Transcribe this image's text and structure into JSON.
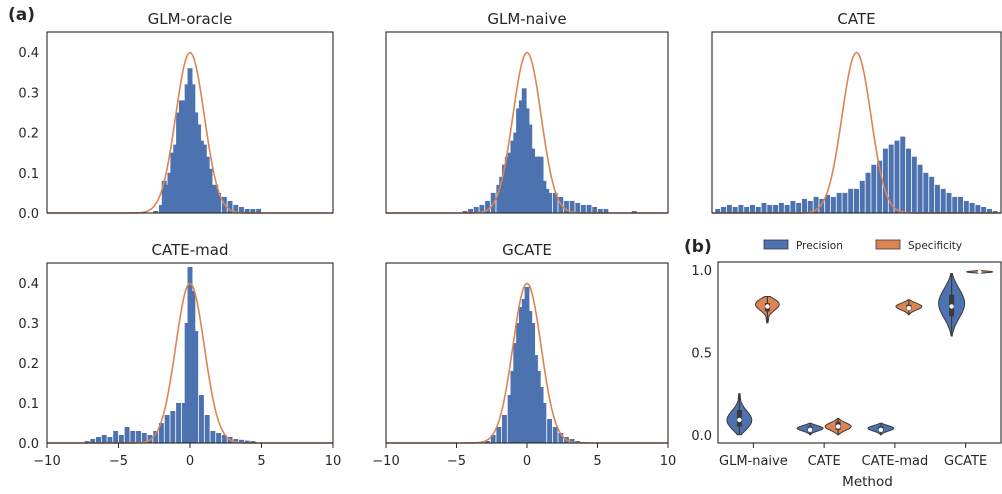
{
  "panel_labels": [
    "(a)",
    "(b)"
  ],
  "colors": {
    "bars": "#4c72b0",
    "curve": "#dd8452",
    "precision": "#4c72b0",
    "specificity": "#dd8452"
  },
  "chart_data": [
    {
      "type": "bar",
      "title": "GLM-oracle",
      "xlim": [
        -10,
        10
      ],
      "ylim": [
        0,
        0.45
      ],
      "bin_width": 0.4,
      "yticks": [
        0.0,
        0.1,
        0.2,
        0.3,
        0.4
      ],
      "bins": [
        {
          "x": -2.4,
          "y": 0.005
        },
        {
          "x": -2.0,
          "y": 0.02
        },
        {
          "x": -1.8,
          "y": 0.08
        },
        {
          "x": -1.6,
          "y": 0.07
        },
        {
          "x": -1.4,
          "y": 0.1
        },
        {
          "x": -1.2,
          "y": 0.15
        },
        {
          "x": -1.0,
          "y": 0.17
        },
        {
          "x": -0.8,
          "y": 0.25
        },
        {
          "x": -0.6,
          "y": 0.28
        },
        {
          "x": -0.4,
          "y": 0.28
        },
        {
          "x": -0.2,
          "y": 0.32
        },
        {
          "x": 0.0,
          "y": 0.36
        },
        {
          "x": 0.2,
          "y": 0.32
        },
        {
          "x": 0.4,
          "y": 0.25
        },
        {
          "x": 0.6,
          "y": 0.22
        },
        {
          "x": 0.8,
          "y": 0.18
        },
        {
          "x": 1.0,
          "y": 0.17
        },
        {
          "x": 1.2,
          "y": 0.14
        },
        {
          "x": 1.4,
          "y": 0.11
        },
        {
          "x": 1.6,
          "y": 0.07
        },
        {
          "x": 1.8,
          "y": 0.07
        },
        {
          "x": 2.0,
          "y": 0.05
        },
        {
          "x": 2.4,
          "y": 0.04
        },
        {
          "x": 2.8,
          "y": 0.03
        },
        {
          "x": 3.2,
          "y": 0.02
        },
        {
          "x": 3.6,
          "y": 0.015
        },
        {
          "x": 4.0,
          "y": 0.01
        },
        {
          "x": 4.4,
          "y": 0.01
        },
        {
          "x": 4.8,
          "y": 0.01
        }
      ],
      "curve": {
        "type": "normal",
        "mean": 0,
        "sd": 1
      }
    },
    {
      "type": "bar",
      "title": "GLM-naive",
      "xlim": [
        -10,
        10
      ],
      "ylim": [
        0,
        0.45
      ],
      "bin_width": 0.4,
      "bins": [
        {
          "x": -4.4,
          "y": 0.005
        },
        {
          "x": -4.0,
          "y": 0.01
        },
        {
          "x": -3.6,
          "y": 0.015
        },
        {
          "x": -3.2,
          "y": 0.02
        },
        {
          "x": -2.8,
          "y": 0.03
        },
        {
          "x": -2.4,
          "y": 0.05
        },
        {
          "x": -2.0,
          "y": 0.07
        },
        {
          "x": -1.8,
          "y": 0.09
        },
        {
          "x": -1.6,
          "y": 0.12
        },
        {
          "x": -1.4,
          "y": 0.14
        },
        {
          "x": -1.2,
          "y": 0.15
        },
        {
          "x": -1.0,
          "y": 0.18
        },
        {
          "x": -0.8,
          "y": 0.2
        },
        {
          "x": -0.6,
          "y": 0.26
        },
        {
          "x": -0.4,
          "y": 0.28
        },
        {
          "x": -0.2,
          "y": 0.31
        },
        {
          "x": 0.0,
          "y": 0.26
        },
        {
          "x": 0.2,
          "y": 0.22
        },
        {
          "x": 0.4,
          "y": 0.16
        },
        {
          "x": 0.6,
          "y": 0.14
        },
        {
          "x": 0.8,
          "y": 0.14
        },
        {
          "x": 1.0,
          "y": 0.14
        },
        {
          "x": 1.2,
          "y": 0.08
        },
        {
          "x": 1.4,
          "y": 0.06
        },
        {
          "x": 1.6,
          "y": 0.05
        },
        {
          "x": 2.0,
          "y": 0.05
        },
        {
          "x": 2.4,
          "y": 0.04
        },
        {
          "x": 2.8,
          "y": 0.03
        },
        {
          "x": 3.2,
          "y": 0.03
        },
        {
          "x": 3.6,
          "y": 0.025
        },
        {
          "x": 4.0,
          "y": 0.02
        },
        {
          "x": 4.4,
          "y": 0.02
        },
        {
          "x": 4.8,
          "y": 0.015
        },
        {
          "x": 5.2,
          "y": 0.01
        },
        {
          "x": 5.6,
          "y": 0.01
        },
        {
          "x": 7.6,
          "y": 0.005
        }
      ],
      "curve": {
        "type": "normal",
        "mean": 0,
        "sd": 1
      }
    },
    {
      "type": "bar",
      "title": "CATE",
      "xlim": [
        -10,
        10
      ],
      "ylim": [
        0,
        0.45
      ],
      "bin_width": 0.4,
      "bins": [
        {
          "x": -9.6,
          "y": 0.01
        },
        {
          "x": -9.2,
          "y": 0.015
        },
        {
          "x": -8.8,
          "y": 0.02
        },
        {
          "x": -8.4,
          "y": 0.015
        },
        {
          "x": -8.0,
          "y": 0.02
        },
        {
          "x": -7.6,
          "y": 0.015
        },
        {
          "x": -7.2,
          "y": 0.02
        },
        {
          "x": -6.8,
          "y": 0.015
        },
        {
          "x": -6.4,
          "y": 0.025
        },
        {
          "x": -6.0,
          "y": 0.02
        },
        {
          "x": -5.6,
          "y": 0.02
        },
        {
          "x": -5.2,
          "y": 0.025
        },
        {
          "x": -4.8,
          "y": 0.02
        },
        {
          "x": -4.4,
          "y": 0.03
        },
        {
          "x": -4.0,
          "y": 0.025
        },
        {
          "x": -3.6,
          "y": 0.035
        },
        {
          "x": -3.2,
          "y": 0.03
        },
        {
          "x": -2.8,
          "y": 0.04
        },
        {
          "x": -2.4,
          "y": 0.035
        },
        {
          "x": -2.0,
          "y": 0.045
        },
        {
          "x": -1.6,
          "y": 0.04
        },
        {
          "x": -1.2,
          "y": 0.05
        },
        {
          "x": -0.8,
          "y": 0.05
        },
        {
          "x": -0.4,
          "y": 0.06
        },
        {
          "x": 0.0,
          "y": 0.06
        },
        {
          "x": 0.4,
          "y": 0.08
        },
        {
          "x": 0.8,
          "y": 0.1
        },
        {
          "x": 1.2,
          "y": 0.12
        },
        {
          "x": 1.6,
          "y": 0.13
        },
        {
          "x": 2.0,
          "y": 0.16
        },
        {
          "x": 2.4,
          "y": 0.17
        },
        {
          "x": 2.8,
          "y": 0.18
        },
        {
          "x": 3.2,
          "y": 0.19
        },
        {
          "x": 3.6,
          "y": 0.16
        },
        {
          "x": 4.0,
          "y": 0.14
        },
        {
          "x": 4.4,
          "y": 0.12
        },
        {
          "x": 4.8,
          "y": 0.1
        },
        {
          "x": 5.2,
          "y": 0.09
        },
        {
          "x": 5.6,
          "y": 0.07
        },
        {
          "x": 6.0,
          "y": 0.06
        },
        {
          "x": 6.4,
          "y": 0.05
        },
        {
          "x": 6.8,
          "y": 0.04
        },
        {
          "x": 7.2,
          "y": 0.04
        },
        {
          "x": 7.6,
          "y": 0.03
        },
        {
          "x": 8.0,
          "y": 0.025
        },
        {
          "x": 8.4,
          "y": 0.02
        },
        {
          "x": 8.8,
          "y": 0.015
        },
        {
          "x": 9.2,
          "y": 0.01
        },
        {
          "x": 9.6,
          "y": 0.005
        }
      ],
      "curve": {
        "type": "normal",
        "mean": 0,
        "sd": 1
      }
    },
    {
      "type": "bar",
      "title": "CATE-mad",
      "xlim": [
        -10,
        10
      ],
      "ylim": [
        0,
        0.45
      ],
      "bin_width": 0.4,
      "bins": [
        {
          "x": -7.2,
          "y": 0.005
        },
        {
          "x": -6.8,
          "y": 0.01
        },
        {
          "x": -6.4,
          "y": 0.015
        },
        {
          "x": -6.0,
          "y": 0.02
        },
        {
          "x": -5.6,
          "y": 0.015
        },
        {
          "x": -5.2,
          "y": 0.03
        },
        {
          "x": -4.8,
          "y": 0.02
        },
        {
          "x": -4.4,
          "y": 0.04
        },
        {
          "x": -4.0,
          "y": 0.03
        },
        {
          "x": -3.6,
          "y": 0.03
        },
        {
          "x": -3.2,
          "y": 0.025
        },
        {
          "x": -2.8,
          "y": 0.02
        },
        {
          "x": -2.4,
          "y": 0.03
        },
        {
          "x": -2.0,
          "y": 0.05
        },
        {
          "x": -1.6,
          "y": 0.07
        },
        {
          "x": -1.2,
          "y": 0.08
        },
        {
          "x": -0.8,
          "y": 0.1
        },
        {
          "x": -0.4,
          "y": 0.1
        },
        {
          "x": -0.2,
          "y": 0.3
        },
        {
          "x": 0.0,
          "y": 0.44
        },
        {
          "x": 0.2,
          "y": 0.38
        },
        {
          "x": 0.4,
          "y": 0.28
        },
        {
          "x": 0.8,
          "y": 0.12
        },
        {
          "x": 1.2,
          "y": 0.07
        },
        {
          "x": 1.6,
          "y": 0.03
        },
        {
          "x": 2.0,
          "y": 0.025
        },
        {
          "x": 2.4,
          "y": 0.02
        },
        {
          "x": 2.8,
          "y": 0.015
        },
        {
          "x": 3.2,
          "y": 0.01
        },
        {
          "x": 3.6,
          "y": 0.008
        },
        {
          "x": 4.0,
          "y": 0.006
        },
        {
          "x": 4.4,
          "y": 0.005
        }
      ],
      "curve": {
        "type": "normal",
        "mean": 0,
        "sd": 1
      }
    },
    {
      "type": "bar",
      "title": "GCATE",
      "xlim": [
        -10,
        10
      ],
      "ylim": [
        0,
        0.45
      ],
      "bin_width": 0.4,
      "bins": [
        {
          "x": -2.8,
          "y": 0.005
        },
        {
          "x": -2.4,
          "y": 0.02
        },
        {
          "x": -2.0,
          "y": 0.04
        },
        {
          "x": -1.6,
          "y": 0.07
        },
        {
          "x": -1.2,
          "y": 0.12
        },
        {
          "x": -1.0,
          "y": 0.18
        },
        {
          "x": -0.8,
          "y": 0.25
        },
        {
          "x": -0.6,
          "y": 0.3
        },
        {
          "x": -0.4,
          "y": 0.34
        },
        {
          "x": -0.2,
          "y": 0.36
        },
        {
          "x": 0.0,
          "y": 0.39
        },
        {
          "x": 0.2,
          "y": 0.33
        },
        {
          "x": 0.4,
          "y": 0.3
        },
        {
          "x": 0.6,
          "y": 0.22
        },
        {
          "x": 0.8,
          "y": 0.18
        },
        {
          "x": 1.0,
          "y": 0.14
        },
        {
          "x": 1.2,
          "y": 0.1
        },
        {
          "x": 1.6,
          "y": 0.06
        },
        {
          "x": 2.0,
          "y": 0.04
        },
        {
          "x": 2.4,
          "y": 0.025
        },
        {
          "x": 2.8,
          "y": 0.015
        },
        {
          "x": 3.2,
          "y": 0.01
        },
        {
          "x": 3.6,
          "y": 0.005
        }
      ],
      "curve": {
        "type": "normal",
        "mean": 0,
        "sd": 1
      }
    },
    {
      "type": "violin",
      "xlabel": "Method",
      "ylim": [
        -0.05,
        1.05
      ],
      "yticks": [
        0.0,
        0.5,
        1.0
      ],
      "categories": [
        "GLM-naive",
        "CATE",
        "CATE-mad",
        "GCATE"
      ],
      "legend": [
        "Precision",
        "Specificity"
      ],
      "legend_position": "top",
      "series": [
        {
          "name": "Precision",
          "color": "#4c72b0",
          "values": [
            {
              "category": "GLM-naive",
              "median": 0.09,
              "q1": 0.05,
              "q3": 0.15,
              "min": 0.0,
              "max": 0.25,
              "peak": 0.08
            },
            {
              "category": "CATE",
              "median": 0.03,
              "q1": 0.02,
              "q3": 0.05,
              "min": 0.0,
              "max": 0.07,
              "peak": 0.04
            },
            {
              "category": "CATE-mad",
              "median": 0.03,
              "q1": 0.02,
              "q3": 0.05,
              "min": 0.0,
              "max": 0.07,
              "peak": 0.04
            },
            {
              "category": "GCATE",
              "median": 0.78,
              "q1": 0.72,
              "q3": 0.85,
              "min": 0.6,
              "max": 0.98,
              "peak": 0.8
            }
          ]
        },
        {
          "name": "Specificity",
          "color": "#dd8452",
          "values": [
            {
              "category": "GLM-naive",
              "median": 0.78,
              "q1": 0.75,
              "q3": 0.8,
              "min": 0.68,
              "max": 0.84,
              "peak": 0.8
            },
            {
              "category": "CATE",
              "median": 0.05,
              "q1": 0.03,
              "q3": 0.08,
              "min": 0.0,
              "max": 0.1,
              "peak": 0.05
            },
            {
              "category": "CATE-mad",
              "median": 0.77,
              "q1": 0.76,
              "q3": 0.79,
              "min": 0.73,
              "max": 0.82,
              "peak": 0.78
            },
            {
              "category": "GCATE",
              "median": 0.99,
              "q1": 0.985,
              "q3": 0.995,
              "min": 0.98,
              "max": 1.0,
              "peak": 0.99
            }
          ]
        }
      ]
    }
  ],
  "hist_xticks": [
    -10,
    -5,
    0,
    5,
    10
  ]
}
